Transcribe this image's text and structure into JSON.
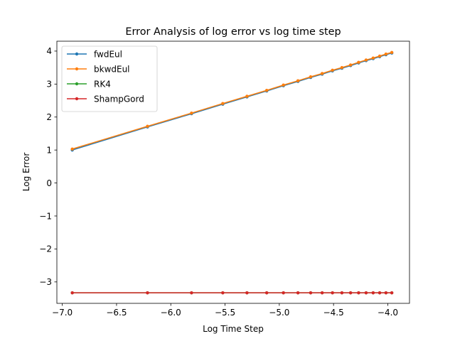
{
  "chart_data": {
    "type": "line",
    "title": "Error Analysis of log error vs log time step",
    "xlabel": "Log Time Step",
    "ylabel": "Log Error",
    "xlim": [
      -7.05,
      -3.8
    ],
    "ylim": [
      -3.65,
      4.3
    ],
    "xticks": [
      -7.0,
      -6.5,
      -6.0,
      -5.5,
      -5.0,
      -4.5,
      -4.0
    ],
    "xtick_labels": [
      "−7.0",
      "−6.5",
      "−6.0",
      "−5.5",
      "−5.0",
      "−4.5",
      "−4.0"
    ],
    "yticks": [
      -3,
      -2,
      -1,
      0,
      1,
      2,
      3,
      4
    ],
    "ytick_labels": [
      "−3",
      "−2",
      "−1",
      "0",
      "1",
      "2",
      "3",
      "4"
    ],
    "grid": false,
    "legend_position": "upper-left",
    "x": [
      -6.908,
      -6.215,
      -5.809,
      -5.521,
      -5.298,
      -5.116,
      -4.962,
      -4.828,
      -4.711,
      -4.605,
      -4.51,
      -4.423,
      -4.343,
      -4.269,
      -4.2,
      -4.135,
      -4.075,
      -4.017,
      -3.963
    ],
    "series": [
      {
        "name": "fwdEul",
        "color": "#1f77b4",
        "values": [
          1.0,
          1.7,
          2.1,
          2.39,
          2.61,
          2.79,
          2.95,
          3.08,
          3.2,
          3.3,
          3.4,
          3.48,
          3.56,
          3.64,
          3.71,
          3.77,
          3.83,
          3.89,
          3.94
        ]
      },
      {
        "name": "bkwdEul",
        "color": "#ff7f0e",
        "values": [
          1.03,
          1.72,
          2.12,
          2.41,
          2.63,
          2.81,
          2.97,
          3.1,
          3.22,
          3.32,
          3.42,
          3.5,
          3.58,
          3.66,
          3.73,
          3.79,
          3.85,
          3.91,
          3.96
        ]
      },
      {
        "name": "RK4",
        "color": "#2ca02c",
        "values": [
          -3.33,
          -3.33,
          -3.33,
          -3.33,
          -3.33,
          -3.33,
          -3.33,
          -3.33,
          -3.33,
          -3.33,
          -3.33,
          -3.33,
          -3.33,
          -3.33,
          -3.33,
          -3.33,
          -3.33,
          -3.33,
          -3.33
        ]
      },
      {
        "name": "ShampGord",
        "color": "#d62728",
        "values": [
          -3.33,
          -3.33,
          -3.33,
          -3.33,
          -3.33,
          -3.33,
          -3.33,
          -3.33,
          -3.33,
          -3.33,
          -3.33,
          -3.33,
          -3.33,
          -3.33,
          -3.33,
          -3.33,
          -3.33,
          -3.33,
          -3.33
        ]
      }
    ]
  }
}
